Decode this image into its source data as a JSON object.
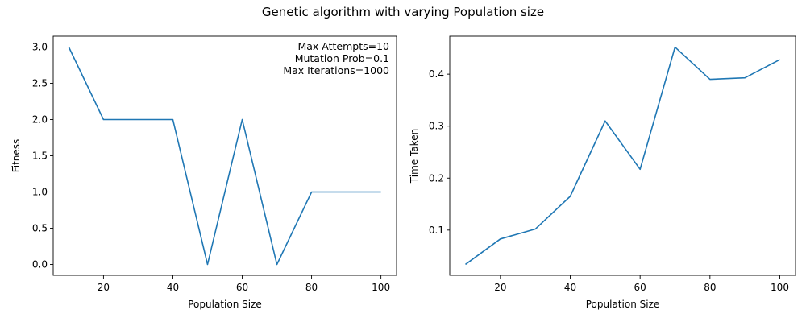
{
  "figure": {
    "suptitle": "Genetic algorithm with varying Population size"
  },
  "chart_data": [
    {
      "type": "line",
      "xlabel": "Population Size",
      "ylabel": "Fitness",
      "x": [
        10,
        20,
        30,
        40,
        50,
        60,
        70,
        80,
        90,
        100
      ],
      "series": [
        {
          "values": [
            3.0,
            2.0,
            2.0,
            2.0,
            0.0,
            2.0,
            0.0,
            1.0,
            1.0,
            1.0
          ],
          "color": "#1f77b4"
        }
      ],
      "xlim": [
        5.5,
        104.5
      ],
      "ylim": [
        -0.15,
        3.15
      ],
      "xticks": [
        20,
        40,
        60,
        80,
        100
      ],
      "xtick_labels": [
        "20",
        "40",
        "60",
        "80",
        "100"
      ],
      "yticks": [
        0.0,
        0.5,
        1.0,
        1.5,
        2.0,
        2.5,
        3.0
      ],
      "ytick_labels": [
        "0.0",
        "0.5",
        "1.0",
        "1.5",
        "2.0",
        "2.5",
        "3.0"
      ],
      "annotation": [
        "Max Attempts=10",
        "Mutation Prob=0.1",
        "Max Iterations=1000"
      ],
      "annotation_placement": "top-right",
      "grid": false
    },
    {
      "type": "line",
      "xlabel": "Population Size",
      "ylabel": "Time Taken",
      "x": [
        10,
        20,
        30,
        40,
        50,
        60,
        70,
        80,
        90,
        100
      ],
      "series": [
        {
          "values": [
            0.034,
            0.083,
            0.102,
            0.165,
            0.31,
            0.217,
            0.452,
            0.39,
            0.393,
            0.428
          ],
          "color": "#1f77b4"
        }
      ],
      "xlim": [
        5.5,
        104.5
      ],
      "ylim": [
        0.013,
        0.473
      ],
      "xticks": [
        20,
        40,
        60,
        80,
        100
      ],
      "xtick_labels": [
        "20",
        "40",
        "60",
        "80",
        "100"
      ],
      "yticks": [
        0.1,
        0.2,
        0.3,
        0.4
      ],
      "ytick_labels": [
        "0.1",
        "0.2",
        "0.3",
        "0.4"
      ],
      "grid": false
    }
  ]
}
